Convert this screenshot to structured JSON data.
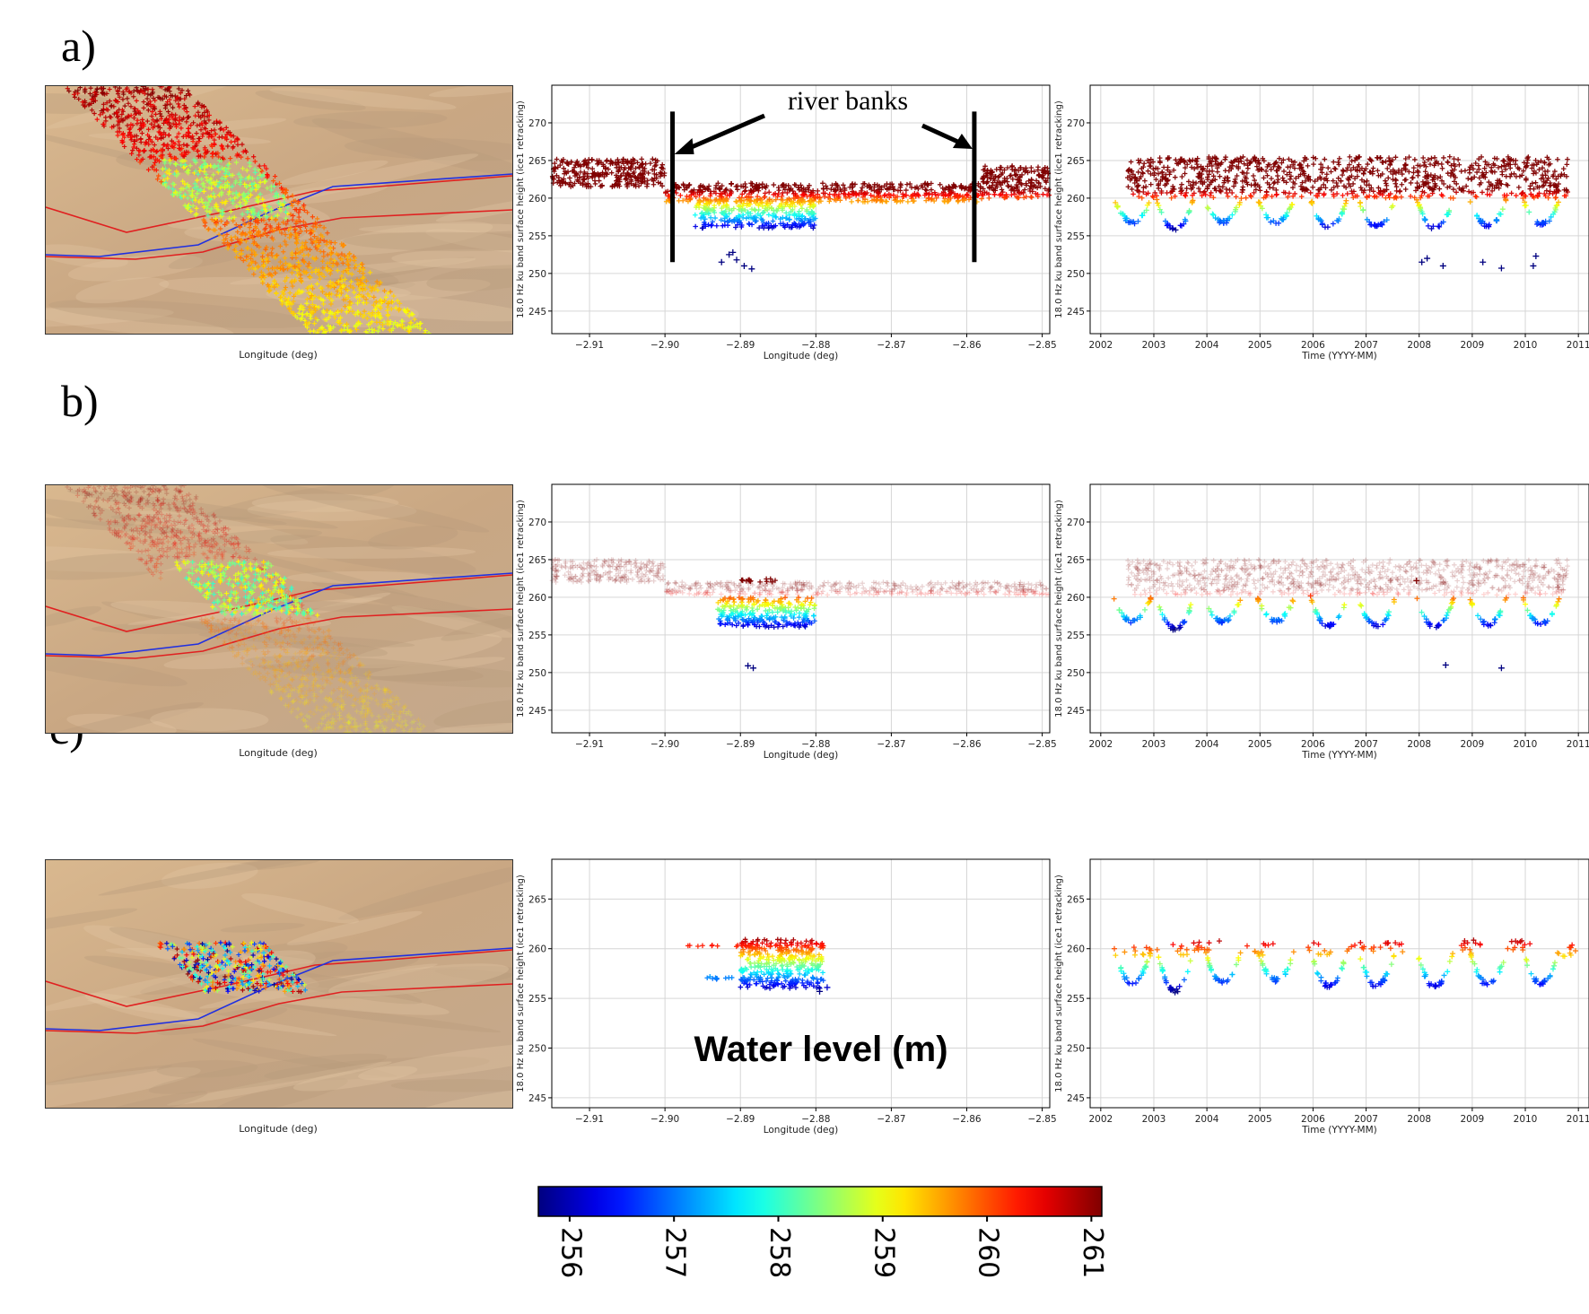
{
  "panels": [
    {
      "label": "a)",
      "map_xlabel": "Longitude (deg)",
      "mode": "a"
    },
    {
      "label": "b)",
      "map_xlabel": "Longitude (deg)",
      "mode": "b"
    },
    {
      "label": "c)",
      "map_xlabel": "Longitude (deg)",
      "mode": "c"
    }
  ],
  "annotation": {
    "text": "river banks"
  },
  "colorbar": {
    "title": "Water level (m)",
    "min": 255.7,
    "max": 261.1,
    "ticks": [
      "256",
      "257",
      "258",
      "259",
      "260",
      "261"
    ]
  },
  "chart_data": [
    {
      "type": "scatter",
      "panel": "a",
      "plot": "height-vs-longitude",
      "xlabel": "Longitude (deg)",
      "ylabel": "18.0 Hz ku band surface height (ice1 retracking)",
      "xlim": [
        -2.915,
        -2.849
      ],
      "ylim": [
        242,
        275
      ],
      "xticks": [
        "-2.91",
        "-2.90",
        "-2.89",
        "-2.88",
        "-2.87",
        "-2.86",
        "-2.85"
      ],
      "yticks": [
        "245",
        "250",
        "255",
        "260",
        "265",
        "270"
      ],
      "grid": true,
      "river_banks_longitude": [
        -2.899,
        -2.859
      ],
      "bands": [
        {
          "x": [
            -2.915,
            -2.9
          ],
          "y": [
            261.5,
            265.2
          ],
          "color_by": "height"
        },
        {
          "x": [
            -2.9,
            -2.858
          ],
          "y": [
            259.5,
            262.0
          ],
          "color_by": "height"
        },
        {
          "x": [
            -2.858,
            -2.849
          ],
          "y": [
            260.0,
            264.3
          ],
          "color_by": "height"
        },
        {
          "x": [
            -2.896,
            -2.88
          ],
          "y": [
            256.0,
            259.8
          ],
          "color_by": "height"
        }
      ],
      "points": [
        {
          "x": -2.8915,
          "y": 252.5
        },
        {
          "x": -2.8905,
          "y": 251.8
        },
        {
          "x": -2.8895,
          "y": 251.0
        },
        {
          "x": -2.8925,
          "y": 251.5
        },
        {
          "x": -2.891,
          "y": 252.8
        },
        {
          "x": -2.8885,
          "y": 250.6
        }
      ]
    },
    {
      "type": "scatter",
      "panel": "a",
      "plot": "height-vs-time",
      "xlabel": "Time (YYYY-MM)",
      "ylabel": "18.0 Hz ku band surface height (ice1 retracking)",
      "xlim": [
        2001.8,
        2011.2
      ],
      "ylim": [
        242,
        275
      ],
      "xticks": [
        "2002",
        "2003",
        "2004",
        "2005",
        "2006",
        "2007",
        "2008",
        "2009",
        "2010",
        "2011"
      ],
      "yticks": [
        "245",
        "250",
        "255",
        "260",
        "265",
        "270"
      ],
      "grid": true,
      "bands": [
        {
          "x": [
            2002.5,
            2010.8
          ],
          "y": [
            260.0,
            265.5
          ],
          "color_by": "height"
        }
      ],
      "seasonal_lows": [
        {
          "x": 2002.6,
          "y": 256.8
        },
        {
          "x": 2003.4,
          "y": 255.8
        },
        {
          "x": 2004.3,
          "y": 256.8
        },
        {
          "x": 2005.3,
          "y": 256.8
        },
        {
          "x": 2006.3,
          "y": 256.2
        },
        {
          "x": 2007.2,
          "y": 256.2
        },
        {
          "x": 2008.3,
          "y": 256.0
        },
        {
          "x": 2009.3,
          "y": 256.4
        },
        {
          "x": 2010.3,
          "y": 256.5
        }
      ],
      "points": [
        {
          "x": 2008.05,
          "y": 251.5
        },
        {
          "x": 2008.15,
          "y": 252.0
        },
        {
          "x": 2008.45,
          "y": 251.0
        },
        {
          "x": 2009.2,
          "y": 251.5
        },
        {
          "x": 2009.55,
          "y": 250.7
        },
        {
          "x": 2010.15,
          "y": 251.0
        },
        {
          "x": 2010.2,
          "y": 252.3
        }
      ]
    },
    {
      "type": "scatter",
      "panel": "b",
      "plot": "height-vs-longitude",
      "xlabel": "Longitude (deg)",
      "ylabel": "18.0 Hz ku band surface height (ice1 retracking)",
      "xlim": [
        -2.915,
        -2.849
      ],
      "ylim": [
        242,
        275
      ],
      "xticks": [
        "-2.91",
        "-2.90",
        "-2.89",
        "-2.88",
        "-2.87",
        "-2.86",
        "-2.85"
      ],
      "yticks": [
        "245",
        "250",
        "255",
        "260",
        "265",
        "270"
      ],
      "grid": true,
      "bands": [
        {
          "x": [
            -2.915,
            -2.9
          ],
          "y": [
            262.0,
            265.0
          ],
          "color_by": "height",
          "faded": true
        },
        {
          "x": [
            -2.9,
            -2.849
          ],
          "y": [
            260.3,
            262.0
          ],
          "color_by": "height",
          "faded": true
        },
        {
          "x": [
            -2.893,
            -2.88
          ],
          "y": [
            256.0,
            260.0
          ],
          "color_by": "height"
        },
        {
          "x": [
            -2.89,
            -2.885
          ],
          "y": [
            262.0,
            262.6
          ],
          "color_by": "height"
        }
      ],
      "points": [
        {
          "x": -2.889,
          "y": 250.9
        },
        {
          "x": -2.8883,
          "y": 250.6
        }
      ]
    },
    {
      "type": "scatter",
      "panel": "b",
      "plot": "height-vs-time",
      "xlabel": "Time (YYYY-MM)",
      "ylabel": "18.0 Hz ku band surface height (ice1 retracking)",
      "xlim": [
        2001.8,
        2011.2
      ],
      "ylim": [
        242,
        275
      ],
      "xticks": [
        "2002",
        "2003",
        "2004",
        "2005",
        "2006",
        "2007",
        "2008",
        "2009",
        "2010",
        "2011"
      ],
      "yticks": [
        "245",
        "250",
        "255",
        "260",
        "265",
        "270"
      ],
      "grid": true,
      "bands": [
        {
          "x": [
            2002.5,
            2010.8
          ],
          "y": [
            260.3,
            265.0
          ],
          "color_by": "height",
          "faded": true
        }
      ],
      "seasonal_lows": [
        {
          "x": 2002.6,
          "y": 256.8
        },
        {
          "x": 2003.4,
          "y": 255.8
        },
        {
          "x": 2004.3,
          "y": 256.8
        },
        {
          "x": 2005.3,
          "y": 256.8
        },
        {
          "x": 2006.3,
          "y": 256.2
        },
        {
          "x": 2007.2,
          "y": 256.2
        },
        {
          "x": 2008.3,
          "y": 256.0
        },
        {
          "x": 2009.3,
          "y": 256.4
        },
        {
          "x": 2010.3,
          "y": 256.5
        }
      ],
      "points": [
        {
          "x": 2008.5,
          "y": 251.0
        },
        {
          "x": 2009.55,
          "y": 250.6
        },
        {
          "x": 2007.95,
          "y": 262.2
        }
      ]
    },
    {
      "type": "scatter",
      "panel": "c",
      "plot": "height-vs-longitude",
      "xlabel": "Longitude (deg)",
      "ylabel": "18.0 Hz ku band surface height (ice1 retracking)",
      "xlim": [
        -2.915,
        -2.849
      ],
      "ylim": [
        244,
        269
      ],
      "xticks": [
        "-2.91",
        "-2.90",
        "-2.89",
        "-2.88",
        "-2.87",
        "-2.86",
        "-2.85"
      ],
      "yticks": [
        "245",
        "250",
        "255",
        "260",
        "265"
      ],
      "grid": true,
      "bands": [
        {
          "x": [
            -2.89,
            -2.879
          ],
          "y": [
            256.0,
            261.0
          ],
          "color_by": "height"
        },
        {
          "x": [
            -2.897,
            -2.89
          ],
          "y": [
            260.2,
            260.4
          ],
          "color_by": "height"
        },
        {
          "x": [
            -2.895,
            -2.891
          ],
          "y": [
            256.8,
            257.2
          ],
          "color_by": "height"
        }
      ],
      "points": [
        {
          "x": -2.8795,
          "y": 255.7
        },
        {
          "x": -2.8785,
          "y": 256.1
        }
      ]
    },
    {
      "type": "scatter",
      "panel": "c",
      "plot": "height-vs-time",
      "xlabel": "Time (YYYY-MM)",
      "ylabel": "18.0 Hz ku band surface height (ice1 retracking)",
      "xlim": [
        2001.8,
        2011.2
      ],
      "ylim": [
        244,
        269
      ],
      "xticks": [
        "2002",
        "2003",
        "2004",
        "2005",
        "2006",
        "2007",
        "2008",
        "2009",
        "2010",
        "2011"
      ],
      "yticks": [
        "245",
        "250",
        "255",
        "260",
        "265"
      ],
      "grid": true,
      "bands": [],
      "seasonal_highs": [
        {
          "x": 2002.7,
          "y": 260.4
        },
        {
          "x": 2003.6,
          "y": 260.5
        },
        {
          "x": 2004.0,
          "y": 261.0
        },
        {
          "x": 2005.0,
          "y": 260.5
        },
        {
          "x": 2006.1,
          "y": 260.6
        },
        {
          "x": 2006.9,
          "y": 260.8
        },
        {
          "x": 2007.5,
          "y": 260.6
        },
        {
          "x": 2008.9,
          "y": 261.0
        },
        {
          "x": 2009.9,
          "y": 261.0
        },
        {
          "x": 2010.7,
          "y": 260.4
        }
      ],
      "seasonal_lows": [
        {
          "x": 2002.6,
          "y": 256.5
        },
        {
          "x": 2003.4,
          "y": 255.8
        },
        {
          "x": 2004.3,
          "y": 256.6
        },
        {
          "x": 2005.3,
          "y": 256.8
        },
        {
          "x": 2006.3,
          "y": 256.3
        },
        {
          "x": 2007.2,
          "y": 256.3
        },
        {
          "x": 2008.3,
          "y": 256.2
        },
        {
          "x": 2009.3,
          "y": 256.4
        },
        {
          "x": 2010.3,
          "y": 256.5
        }
      ],
      "points": []
    }
  ]
}
